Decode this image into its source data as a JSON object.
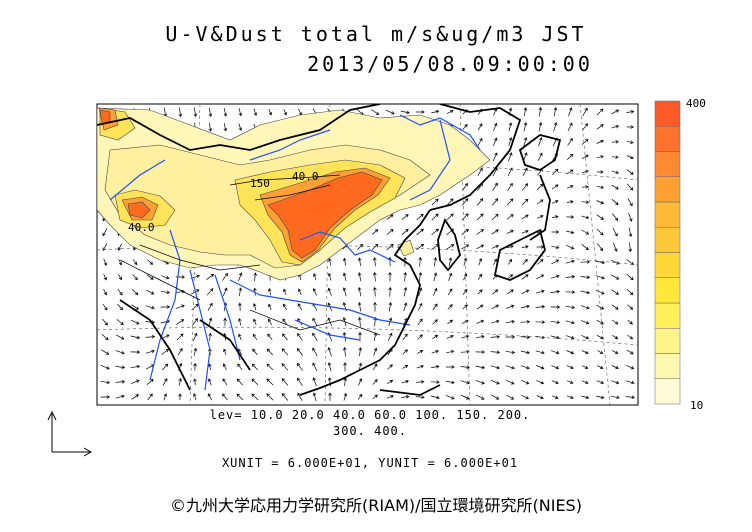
{
  "title": {
    "line1": "U-V&Dust total m/s&ug/m3 JST",
    "line2": "2013/05/08.09:00:00"
  },
  "colorbar": {
    "max_label": "400",
    "min_label": "10",
    "colors": [
      "#fffbd8",
      "#fff8b0",
      "#fff48a",
      "#fff05c",
      "#ffe83a",
      "#ffd838",
      "#ffc838",
      "#ffb838",
      "#ffa035",
      "#ff8a32",
      "#ff722e",
      "#ff5a28"
    ]
  },
  "legend": {
    "levels_line1": "lev= 10.0 20.0 40.0 60.0 100. 150. 200.",
    "levels_line2": "300. 400.",
    "units": "XUNIT = 6.000E+01, YUNIT = 6.000E+01"
  },
  "contour_labels": [
    "40.0",
    "150",
    "40.0"
  ],
  "copyright": "©九州大学応用力学研究所(RIAM)/国立環境研究所(NIES)",
  "map_colors": {
    "dust_light": "#fff6b8",
    "dust_mid": "#ffe45a",
    "dust_heavy": "#ff6a1e",
    "rivers": "#1e50ff",
    "coast": "#000000"
  }
}
